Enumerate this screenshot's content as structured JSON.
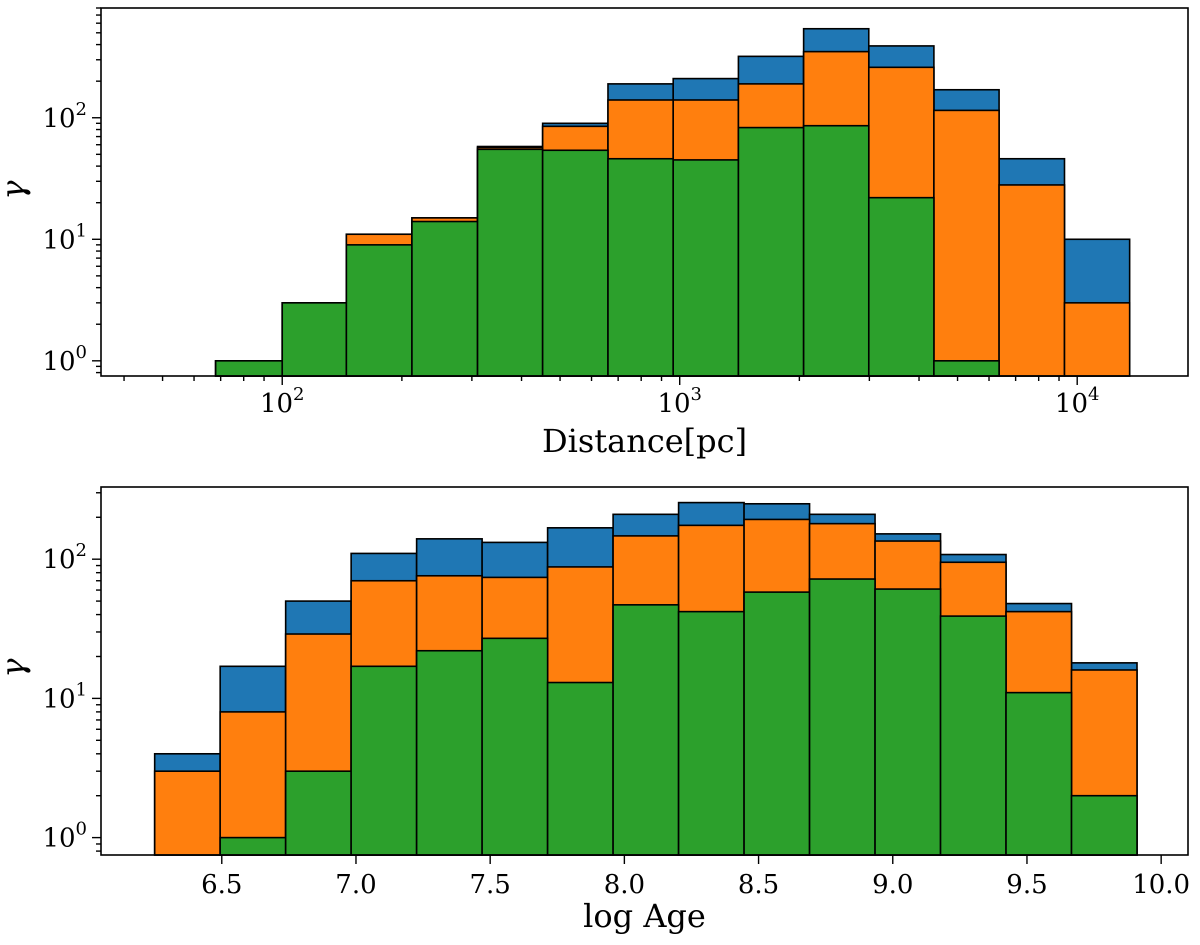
{
  "chart_data": [
    {
      "type": "bar",
      "subtype": "stacked-histogram",
      "xscale": "log",
      "yscale": "log",
      "xlabel": "Distance[pc]",
      "ylabel": "γ",
      "xlim": [
        35,
        19000
      ],
      "ylim": [
        0.75,
        800
      ],
      "x_ticks": [
        {
          "value": 100,
          "label": "10",
          "exp": "2"
        },
        {
          "value": 1000,
          "label": "10",
          "exp": "3"
        },
        {
          "value": 10000,
          "label": "10",
          "exp": "4"
        }
      ],
      "y_ticks": [
        {
          "value": 1,
          "label": "10",
          "exp": "0"
        },
        {
          "value": 10,
          "label": "10",
          "exp": "1"
        },
        {
          "value": 100,
          "label": "10",
          "exp": "2"
        }
      ],
      "bin_edges": [
        68,
        100,
        145,
        212,
        310,
        452,
        660,
        963,
        1405,
        2050,
        2990,
        4360,
        6360,
        9290,
        13550
      ],
      "series": [
        {
          "name": "blue",
          "color": "#1f77b4",
          "values": [
            1,
            3,
            11,
            15,
            58,
            90,
            190,
            210,
            320,
            540,
            390,
            170,
            46,
            10
          ]
        },
        {
          "name": "orange",
          "color": "#ff7f0e",
          "values": [
            1,
            3,
            11,
            15,
            57,
            85,
            140,
            140,
            190,
            350,
            260,
            115,
            28,
            3
          ]
        },
        {
          "name": "green",
          "color": "#2ca02c",
          "values": [
            1,
            3,
            9,
            14,
            55,
            54,
            46,
            45,
            83,
            86,
            22,
            1,
            0,
            0
          ]
        }
      ]
    },
    {
      "type": "bar",
      "subtype": "stacked-histogram",
      "xscale": "linear",
      "yscale": "log",
      "xlabel": "log Age",
      "ylabel": "γ",
      "xlim": [
        6.05,
        10.1
      ],
      "ylim": [
        0.75,
        330
      ],
      "x_ticks": [
        {
          "value": 6.5,
          "label": "6.5"
        },
        {
          "value": 7.0,
          "label": "7.0"
        },
        {
          "value": 7.5,
          "label": "7.5"
        },
        {
          "value": 8.0,
          "label": "8.0"
        },
        {
          "value": 8.5,
          "label": "8.5"
        },
        {
          "value": 9.0,
          "label": "9.0"
        },
        {
          "value": 9.5,
          "label": "9.5"
        },
        {
          "value": 10.0,
          "label": "10.0"
        }
      ],
      "y_ticks": [
        {
          "value": 1,
          "label": "10",
          "exp": "0"
        },
        {
          "value": 10,
          "label": "10",
          "exp": "1"
        },
        {
          "value": 100,
          "label": "10",
          "exp": "2"
        }
      ],
      "bin_edges": [
        6.25,
        6.494,
        6.738,
        6.982,
        7.226,
        7.47,
        7.714,
        7.958,
        8.202,
        8.446,
        8.69,
        8.934,
        9.178,
        9.422,
        9.666,
        9.91
      ],
      "series": [
        {
          "name": "blue",
          "color": "#1f77b4",
          "values": [
            4,
            17,
            50,
            110,
            140,
            132,
            168,
            210,
            255,
            250,
            210,
            152,
            108,
            48,
            18
          ]
        },
        {
          "name": "orange",
          "color": "#ff7f0e",
          "values": [
            3,
            8,
            29,
            70,
            76,
            74,
            88,
            147,
            175,
            193,
            180,
            135,
            95,
            42,
            16
          ]
        },
        {
          "name": "green",
          "color": "#2ca02c",
          "values": [
            0,
            1,
            3,
            17,
            22,
            27,
            13,
            47,
            42,
            58,
            72,
            61,
            39,
            11,
            2
          ]
        }
      ]
    }
  ]
}
